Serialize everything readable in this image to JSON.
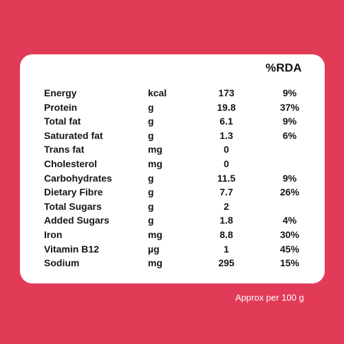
{
  "table": {
    "rda_header": "%RDA",
    "rows": [
      {
        "name": "Energy",
        "unit": "kcal",
        "amount": "173",
        "rda": "9%"
      },
      {
        "name": "Protein",
        "unit": "g",
        "amount": "19.8",
        "rda": "37%"
      },
      {
        "name": "Total fat",
        "unit": "g",
        "amount": "6.1",
        "rda": "9%"
      },
      {
        "name": "Saturated fat",
        "unit": "g",
        "amount": "1.3",
        "rda": "6%"
      },
      {
        "name": "Trans fat",
        "unit": "mg",
        "amount": "0",
        "rda": ""
      },
      {
        "name": "Cholesterol",
        "unit": "mg",
        "amount": "0",
        "rda": ""
      },
      {
        "name": "Carbohydrates",
        "unit": "g",
        "amount": "11.5",
        "rda": "9%"
      },
      {
        "name": "Dietary Fibre",
        "unit": "g",
        "amount": "7.7",
        "rda": "26%"
      },
      {
        "name": "Total Sugars",
        "unit": "g",
        "amount": "2",
        "rda": ""
      },
      {
        "name": "Added Sugars",
        "unit": "g",
        "amount": "1.8",
        "rda": "4%"
      },
      {
        "name": "Iron",
        "unit": "mg",
        "amount": "8.8",
        "rda": "30%"
      },
      {
        "name": "Vitamin B12",
        "unit": "µg",
        "amount": "1",
        "rda": "45%"
      },
      {
        "name": "Sodium",
        "unit": "mg",
        "amount": "295",
        "rda": "15%"
      }
    ]
  },
  "footnote": "Approx per 100 g",
  "colors": {
    "background": "#e23b58",
    "card": "#ffffff",
    "text": "#141414"
  }
}
